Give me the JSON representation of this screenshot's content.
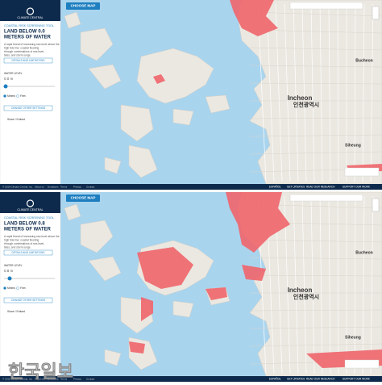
{
  "panels": [
    {
      "logo": "CLIMATE CENTRAL",
      "tool": "COASTAL RISK SCREENING TOOL",
      "title_lines": [
        "LAND BELOW 0.0",
        "METERS OF WATER"
      ],
      "description": [
        "A rapid threat of increasing sea level above the",
        "high tide line: coastal flooding",
        "through combinations of sea level,",
        "tides, and storm surge."
      ],
      "details_button": "DETAILS AND LIMITATIONS",
      "water_level_label": "WATER LEVEL",
      "water_level": "0.0 m",
      "units": [
        "Meters",
        "Feet"
      ],
      "settings_button": "CHANGE OTHER SETTINGS",
      "share": "Share / Embed",
      "choose_map": "CHOOSE MAP",
      "map_labels": [
        "Incheon",
        "인천광역시",
        "Bucheon",
        "Siheung"
      ],
      "footer_left": [
        "© 2019 Climate Central, Inc.",
        "About us",
        "Donations",
        "Terms",
        "Privacy",
        "Contact"
      ],
      "footer_right": [
        "ESPAÑOL",
        "GET UPDATES",
        "READ OUR RESEARCH",
        "SUPPORT OUR WORK"
      ]
    },
    {
      "logo": "CLIMATE CENTRAL",
      "tool": "COASTAL RISK SCREENING TOOL",
      "title_lines": [
        "LAND BELOW 0.8",
        "METERS OF WATER"
      ],
      "description": [
        "A rapid threat of increasing sea level above the",
        "high tide line: coastal flooding",
        "through combinations of sea level,",
        "tides, and storm surge."
      ],
      "details_button": "DETAILS AND LIMITATIONS",
      "water_level_label": "WATER LEVEL",
      "water_level": "0.8 m",
      "units": [
        "Meters",
        "Feet"
      ],
      "settings_button": "CHANGE OTHER SETTINGS",
      "share": "Share / Embed",
      "choose_map": "CHOOSE MAP",
      "map_labels": [
        "Incheon",
        "인천광역시",
        "Bucheon",
        "Siheung"
      ],
      "footer_left": [
        "© 2019 Climate Central, Inc.",
        "About us",
        "Donations",
        "Terms",
        "Privacy",
        "Contact"
      ],
      "footer_right": [
        "ESPAÑOL",
        "GET UPDATES",
        "READ OUR RESEARCH",
        "SUPPORT OUR WORK"
      ]
    }
  ],
  "watermark": "한국일보"
}
